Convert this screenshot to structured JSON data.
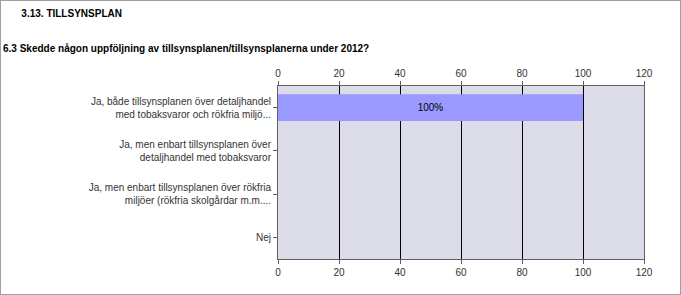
{
  "chart_data": {
    "type": "bar",
    "orientation": "horizontal",
    "title": "3.13. TILLSYNSPLAN",
    "subtitle": "6.3 Skedde någon uppföljning av tillsynsplanen/tillsynsplanerna under 2012?",
    "categories": [
      "Ja, både tillsynsplanen över detaljhandel med tobaksvaror och rökfria miljö...",
      "Ja, men enbart tillsynsplanen över detaljhandel med tobaksvaror",
      "Ja, men enbart tillsynsplanen över rökfria miljöer (rökfria skolgårdar m.m....",
      "Nej"
    ],
    "values": [
      100,
      0,
      0,
      0
    ],
    "value_labels": [
      "100%",
      null,
      null,
      null
    ],
    "data_labels": true,
    "color": "#9999ff",
    "xlim": [
      0,
      120
    ],
    "xticks": [
      0,
      20,
      40,
      60,
      80,
      100,
      120
    ],
    "grid": true
  }
}
